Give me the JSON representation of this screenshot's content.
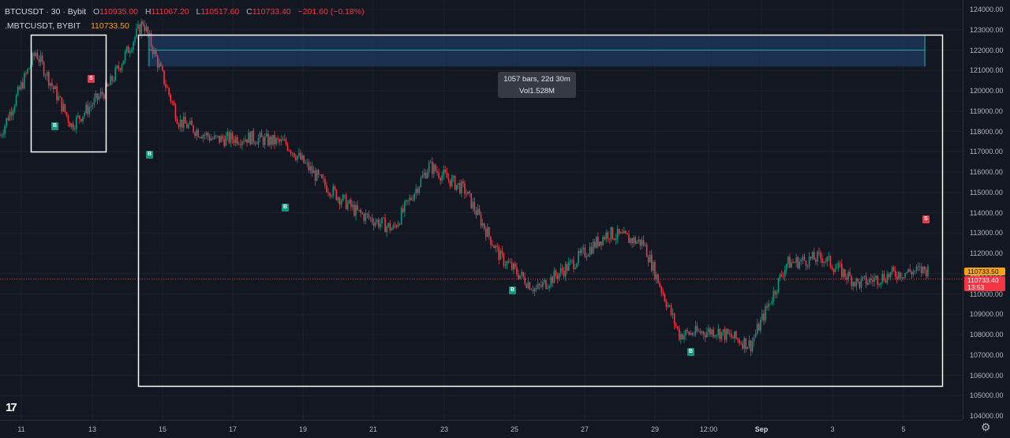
{
  "legend": {
    "symbol": "BTCUSDT · 30 · Bybit",
    "open_label": "O",
    "open": "110935.00",
    "high_label": "H",
    "high": "111067.20",
    "low_label": "L",
    "low": "110517.60",
    "close_label": "C",
    "close": "110733.40",
    "change": "−201.60 (−0.18%)",
    "index_symbol": ".MBTCUSDT, BYBIT",
    "index_value": "110733.50"
  },
  "tooltip": {
    "line1": "1057 bars, 22d 30m",
    "line2": "Vol1.528M"
  },
  "price_axis": {
    "ticks": [
      "124000.00",
      "123000.00",
      "122000.00",
      "121000.00",
      "120000.00",
      "119000.00",
      "118000.00",
      "117000.00",
      "116000.00",
      "115000.00",
      "114000.00",
      "113000.00",
      "112000.00",
      "111000.00",
      "110000.00",
      "109000.00",
      "108000.00",
      "107000.00",
      "106000.00",
      "105000.00",
      "104000.00"
    ],
    "last_badge": "110733.50",
    "current_badge": "110733.40",
    "countdown": "13:53"
  },
  "time_axis": {
    "ticks": [
      "11",
      "13",
      "15",
      "17",
      "19",
      "21",
      "23",
      "25",
      "27",
      "29",
      "12:00",
      "Sep",
      "3",
      "5"
    ]
  },
  "markers": {
    "buy": "B",
    "sell": "S"
  },
  "icons": {
    "logo": "tradingview-logo-icon",
    "settings": "gear-icon"
  },
  "colors": {
    "background": "#131722",
    "up": "#089981",
    "down": "#f23645",
    "accent": "#f7a21b",
    "box": "#ffffff",
    "range": "#1e3a5f"
  },
  "chart_data": {
    "type": "line",
    "title": "",
    "xlabel": "",
    "ylabel": "",
    "ylim": [
      104000,
      124400
    ],
    "x": [
      "11",
      "12",
      "13",
      "14",
      "15",
      "16",
      "17",
      "18",
      "19",
      "20",
      "21",
      "22",
      "23",
      "24",
      "25",
      "26",
      "27",
      "28",
      "29",
      "30",
      "31",
      "Sep",
      "2",
      "3",
      "4",
      "5",
      "6"
    ],
    "series": [
      {
        "values": [
          117800,
          121900,
          118300,
          120100,
          123400,
          118500,
          117600,
          117700,
          117400,
          115500,
          114000,
          113200,
          116300,
          115100,
          111800,
          110200,
          111500,
          113000,
          112500,
          108000,
          108200,
          107500,
          111500,
          111800,
          110500,
          111000,
          111200
        ]
      }
    ]
  }
}
